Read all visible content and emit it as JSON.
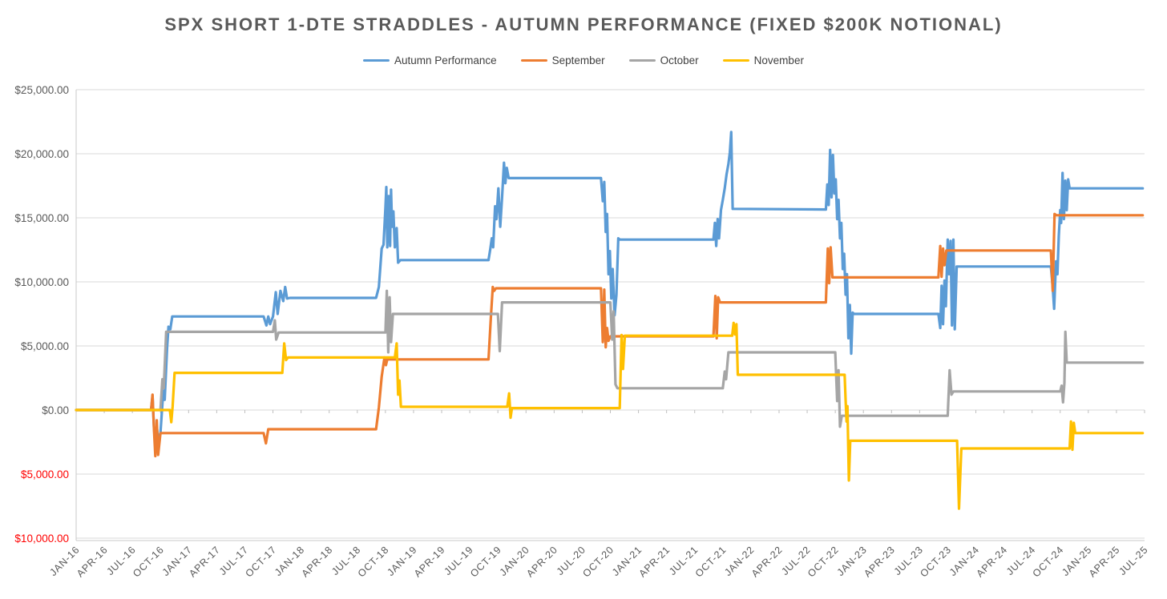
{
  "page": {
    "background": "#FFFFFF"
  },
  "chart_data": {
    "type": "line",
    "title": "SPX SHORT 1-DTE STRADDLES - AUTUMN PERFORMANCE (FIXED $200K NOTIONAL)",
    "legend_position": "top",
    "grid": true,
    "colors": {
      "gridline": "#D9D9D9",
      "axis_line": "#C9C9C9",
      "tick": "#BFBFBF",
      "axis_label": "#595959",
      "negative_label": "#FF0000",
      "title": "#595959",
      "legend_text": "#404040"
    },
    "y_axis": {
      "min": -10000,
      "max": 25000,
      "step": 5000,
      "tick_labels": [
        {
          "text": "$25,000.00",
          "value": 25000,
          "color": "#595959"
        },
        {
          "text": "$20,000.00",
          "value": 20000,
          "color": "#595959"
        },
        {
          "text": "$15,000.00",
          "value": 15000,
          "color": "#595959"
        },
        {
          "text": "$10,000.00",
          "value": 10000,
          "color": "#595959"
        },
        {
          "text": "$5,000.00",
          "value": 5000,
          "color": "#595959"
        },
        {
          "text": "$0.00",
          "value": 0,
          "color": "#595959"
        },
        {
          "text": "$5,000.00",
          "value": -5000,
          "color": "#FF0000"
        },
        {
          "text": "$10,000.00",
          "value": -10000,
          "color": "#FF0000"
        }
      ]
    },
    "x_axis": {
      "unit": "months since JAN-16",
      "months_per_label": 3,
      "labels": [
        "JAN-16",
        "APR-16",
        "JUL-16",
        "OCT-16",
        "JAN-17",
        "APR-17",
        "JUL-17",
        "OCT-17",
        "JAN-18",
        "APR-18",
        "JUL-18",
        "OCT-18",
        "JAN-19",
        "APR-19",
        "JUL-19",
        "OCT-19",
        "JAN-20",
        "APR-20",
        "JUL-20",
        "OCT-20",
        "JAN-21",
        "APR-21",
        "JUL-21",
        "OCT-21",
        "JAN-22",
        "APR-22",
        "JUL-22",
        "OCT-22",
        "JAN-23",
        "APR-23",
        "JUL-23",
        "OCT-23",
        "JAN-24",
        "APR-24",
        "JUL-24",
        "OCT-24",
        "JAN-25",
        "APR-25",
        "JUL-25"
      ]
    },
    "series": [
      {
        "name": "Autumn Performance",
        "color": "#5B9BD5",
        "points": [
          [
            0,
            0
          ],
          [
            8,
            0
          ],
          [
            8.15,
            1100
          ],
          [
            8.3,
            -1400
          ],
          [
            8.45,
            -2600
          ],
          [
            8.6,
            -1300
          ],
          [
            8.75,
            -2300
          ],
          [
            9,
            -1800
          ],
          [
            9.3,
            1500
          ],
          [
            9.45,
            800
          ],
          [
            9.7,
            4800
          ],
          [
            9.85,
            6500
          ],
          [
            10.05,
            6300
          ],
          [
            10.25,
            7300
          ],
          [
            20,
            7300
          ],
          [
            20.3,
            6600
          ],
          [
            20.5,
            7300
          ],
          [
            20.7,
            6700
          ],
          [
            21,
            7300
          ],
          [
            21.3,
            9200
          ],
          [
            21.5,
            7500
          ],
          [
            21.8,
            9300
          ],
          [
            22.1,
            8500
          ],
          [
            22.3,
            9600
          ],
          [
            22.5,
            8700
          ],
          [
            22.8,
            8750
          ],
          [
            32,
            8750
          ],
          [
            32.3,
            9600
          ],
          [
            32.6,
            12600
          ],
          [
            32.8,
            12900
          ],
          [
            33,
            15800
          ],
          [
            33.1,
            17400
          ],
          [
            33.2,
            12700
          ],
          [
            33.35,
            16700
          ],
          [
            33.5,
            12800
          ],
          [
            33.6,
            17200
          ],
          [
            33.7,
            14300
          ],
          [
            33.85,
            15500
          ],
          [
            34,
            12700
          ],
          [
            34.2,
            14200
          ],
          [
            34.35,
            11500
          ],
          [
            34.6,
            11700
          ],
          [
            44,
            11700
          ],
          [
            44.2,
            12600
          ],
          [
            44.35,
            13400
          ],
          [
            44.5,
            12700
          ],
          [
            44.7,
            15900
          ],
          [
            44.85,
            14900
          ],
          [
            45.05,
            17300
          ],
          [
            45.25,
            14300
          ],
          [
            45.45,
            16600
          ],
          [
            45.65,
            19300
          ],
          [
            45.8,
            17700
          ],
          [
            45.95,
            18900
          ],
          [
            46.15,
            18100
          ],
          [
            56,
            18100
          ],
          [
            56.2,
            16300
          ],
          [
            56.35,
            17800
          ],
          [
            56.5,
            13900
          ],
          [
            56.65,
            15300
          ],
          [
            56.8,
            10600
          ],
          [
            56.95,
            12400
          ],
          [
            57.1,
            8700
          ],
          [
            57.25,
            11000
          ],
          [
            57.45,
            7400
          ],
          [
            57.65,
            9000
          ],
          [
            57.85,
            13400
          ],
          [
            58,
            13300
          ],
          [
            68,
            13300
          ],
          [
            68.15,
            14600
          ],
          [
            68.3,
            12800
          ],
          [
            68.45,
            14900
          ],
          [
            68.6,
            13400
          ],
          [
            68.8,
            15600
          ],
          [
            69,
            16400
          ],
          [
            69.2,
            17300
          ],
          [
            69.4,
            18400
          ],
          [
            69.6,
            19200
          ],
          [
            69.75,
            20100
          ],
          [
            69.9,
            21700
          ],
          [
            70.05,
            15700
          ],
          [
            80,
            15650
          ],
          [
            80.15,
            17600
          ],
          [
            80.3,
            16000
          ],
          [
            80.45,
            20300
          ],
          [
            80.6,
            16600
          ],
          [
            80.75,
            19900
          ],
          [
            80.9,
            16900
          ],
          [
            81.05,
            18000
          ],
          [
            81.2,
            14900
          ],
          [
            81.35,
            16400
          ],
          [
            81.5,
            13400
          ],
          [
            81.65,
            14600
          ],
          [
            81.8,
            11000
          ],
          [
            81.95,
            12200
          ],
          [
            82.1,
            9000
          ],
          [
            82.25,
            10600
          ],
          [
            82.4,
            5600
          ],
          [
            82.55,
            8200
          ],
          [
            82.7,
            4400
          ],
          [
            82.85,
            7600
          ],
          [
            83,
            7500
          ],
          [
            92,
            7500
          ],
          [
            92.2,
            6400
          ],
          [
            92.35,
            9700
          ],
          [
            92.5,
            6700
          ],
          [
            92.65,
            10100
          ],
          [
            92.8,
            8100
          ],
          [
            93,
            13300
          ],
          [
            93.15,
            10600
          ],
          [
            93.3,
            13200
          ],
          [
            93.45,
            6600
          ],
          [
            93.6,
            13300
          ],
          [
            93.75,
            6300
          ],
          [
            93.95,
            11200
          ],
          [
            104,
            11200
          ],
          [
            104.2,
            9600
          ],
          [
            104.35,
            7900
          ],
          [
            104.55,
            11600
          ],
          [
            104.7,
            10600
          ],
          [
            104.85,
            13600
          ],
          [
            105,
            15600
          ],
          [
            105.1,
            14600
          ],
          [
            105.25,
            18500
          ],
          [
            105.4,
            14900
          ],
          [
            105.55,
            17900
          ],
          [
            105.7,
            15600
          ],
          [
            105.85,
            18000
          ],
          [
            106,
            17300
          ],
          [
            113.8,
            17300
          ]
        ]
      },
      {
        "name": "September",
        "color": "#ED7D31",
        "points": [
          [
            0,
            0
          ],
          [
            8,
            0
          ],
          [
            8.15,
            1200
          ],
          [
            8.3,
            -1500
          ],
          [
            8.45,
            -3600
          ],
          [
            8.6,
            -800
          ],
          [
            8.75,
            -3500
          ],
          [
            9,
            -1800
          ],
          [
            20,
            -1800
          ],
          [
            20.25,
            -2600
          ],
          [
            20.5,
            -1500
          ],
          [
            32,
            -1500
          ],
          [
            32.3,
            200
          ],
          [
            32.6,
            2600
          ],
          [
            32.9,
            4100
          ],
          [
            33.05,
            3500
          ],
          [
            33.2,
            3950
          ],
          [
            44,
            3950
          ],
          [
            44.25,
            7200
          ],
          [
            44.45,
            9600
          ],
          [
            44.6,
            9300
          ],
          [
            44.8,
            9500
          ],
          [
            56,
            9500
          ],
          [
            56.2,
            5300
          ],
          [
            56.35,
            9400
          ],
          [
            56.5,
            4900
          ],
          [
            56.65,
            6400
          ],
          [
            56.8,
            5400
          ],
          [
            57,
            5750
          ],
          [
            68,
            5750
          ],
          [
            68.2,
            8900
          ],
          [
            68.35,
            5600
          ],
          [
            68.5,
            8800
          ],
          [
            68.7,
            8400
          ],
          [
            80,
            8400
          ],
          [
            80.2,
            12600
          ],
          [
            80.35,
            9900
          ],
          [
            80.5,
            12700
          ],
          [
            80.7,
            10350
          ],
          [
            92,
            10350
          ],
          [
            92.2,
            12800
          ],
          [
            92.35,
            10400
          ],
          [
            92.5,
            12600
          ],
          [
            92.65,
            11300
          ],
          [
            92.85,
            12450
          ],
          [
            104,
            12450
          ],
          [
            104.2,
            9300
          ],
          [
            104.4,
            15300
          ],
          [
            104.6,
            15200
          ],
          [
            113.8,
            15200
          ]
        ]
      },
      {
        "name": "October",
        "color": "#A5A5A5",
        "points": [
          [
            0,
            0
          ],
          [
            9,
            0
          ],
          [
            9.2,
            2400
          ],
          [
            9.35,
            1700
          ],
          [
            9.6,
            6100
          ],
          [
            21,
            6100
          ],
          [
            21.2,
            7000
          ],
          [
            21.35,
            5500
          ],
          [
            21.6,
            6050
          ],
          [
            33,
            6050
          ],
          [
            33.15,
            9300
          ],
          [
            33.3,
            4500
          ],
          [
            33.45,
            8800
          ],
          [
            33.6,
            5300
          ],
          [
            33.8,
            7500
          ],
          [
            45,
            7500
          ],
          [
            45.2,
            4600
          ],
          [
            45.45,
            8400
          ],
          [
            57,
            8400
          ],
          [
            57.2,
            5500
          ],
          [
            57.35,
            7700
          ],
          [
            57.55,
            2000
          ],
          [
            57.75,
            1700
          ],
          [
            69,
            1700
          ],
          [
            69.2,
            3000
          ],
          [
            69.35,
            2400
          ],
          [
            69.6,
            4500
          ],
          [
            81,
            4500
          ],
          [
            81.2,
            700
          ],
          [
            81.35,
            3100
          ],
          [
            81.5,
            -1300
          ],
          [
            81.7,
            -450
          ],
          [
            93,
            -450
          ],
          [
            93.2,
            3100
          ],
          [
            93.4,
            1200
          ],
          [
            93.6,
            1450
          ],
          [
            105,
            1450
          ],
          [
            105.15,
            1900
          ],
          [
            105.3,
            600
          ],
          [
            105.45,
            2100
          ],
          [
            105.55,
            6100
          ],
          [
            105.7,
            3700
          ],
          [
            113.8,
            3700
          ]
        ]
      },
      {
        "name": "November",
        "color": "#FFC000",
        "points": [
          [
            0,
            0
          ],
          [
            10,
            0
          ],
          [
            10.15,
            -950
          ],
          [
            10.3,
            300
          ],
          [
            10.5,
            2900
          ],
          [
            22,
            2900
          ],
          [
            22.2,
            5200
          ],
          [
            22.4,
            3900
          ],
          [
            22.6,
            4100
          ],
          [
            34,
            4100
          ],
          [
            34.2,
            5200
          ],
          [
            34.35,
            1200
          ],
          [
            34.5,
            2300
          ],
          [
            34.65,
            250
          ],
          [
            46,
            250
          ],
          [
            46.2,
            1300
          ],
          [
            46.35,
            -600
          ],
          [
            46.5,
            150
          ],
          [
            58,
            150
          ],
          [
            58.2,
            5850
          ],
          [
            58.35,
            3200
          ],
          [
            58.55,
            5800
          ],
          [
            70,
            5800
          ],
          [
            70.15,
            6800
          ],
          [
            70.3,
            5900
          ],
          [
            70.45,
            6700
          ],
          [
            70.6,
            2750
          ],
          [
            82,
            2750
          ],
          [
            82.1,
            800
          ],
          [
            82.2,
            -900
          ],
          [
            82.3,
            300
          ],
          [
            82.45,
            -5500
          ],
          [
            82.6,
            -2400
          ],
          [
            94,
            -2400
          ],
          [
            94.2,
            -7700
          ],
          [
            94.45,
            -3000
          ],
          [
            106,
            -3000
          ],
          [
            106.15,
            -900
          ],
          [
            106.3,
            -3100
          ],
          [
            106.45,
            -1000
          ],
          [
            106.6,
            -1800
          ],
          [
            113.8,
            -1800
          ]
        ]
      }
    ]
  }
}
